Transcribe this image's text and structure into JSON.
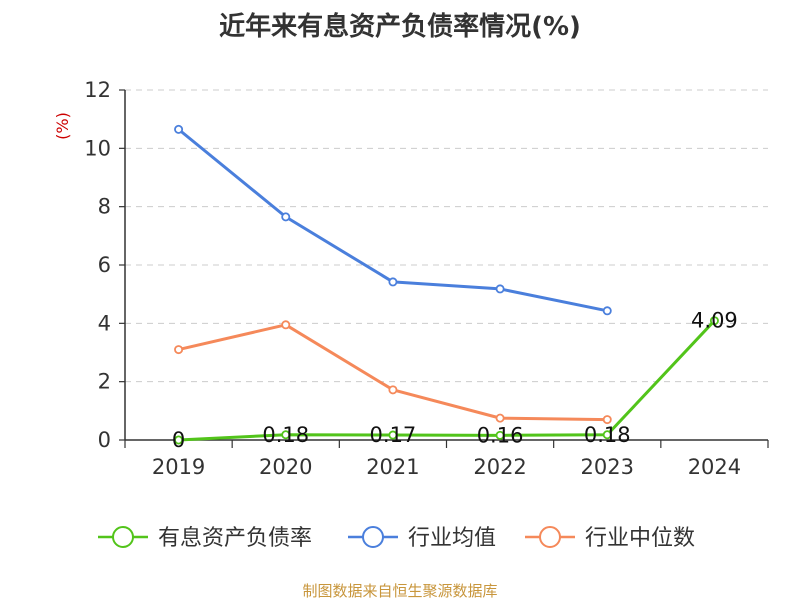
{
  "chart_data": {
    "type": "line",
    "title": "近年来有息资产负债率情况(%)",
    "y_unit": "(%)",
    "categories": [
      "2019",
      "2020",
      "2021",
      "2022",
      "2023",
      "2024"
    ],
    "ylim": [
      0,
      12
    ],
    "yticks": [
      "0",
      "2",
      "4",
      "6",
      "8",
      "10",
      "12"
    ],
    "grid": true,
    "legend_position": "bottom",
    "series": [
      {
        "name": "有息资产负债率",
        "color": "#52c41a",
        "values": [
          0,
          0.18,
          0.17,
          0.16,
          0.18,
          4.09
        ],
        "labels": [
          "0",
          "0.18",
          "0.17",
          "0.16",
          "0.18",
          "4.09"
        ]
      },
      {
        "name": "行业均值",
        "color": "#4a7fdc",
        "values": [
          10.65,
          7.65,
          5.42,
          5.18,
          4.43,
          null
        ]
      },
      {
        "name": "行业中位数",
        "color": "#f5895a",
        "values": [
          3.1,
          3.95,
          1.72,
          0.75,
          0.7,
          null
        ]
      }
    ],
    "source": "制图数据来自恒生聚源数据库"
  }
}
